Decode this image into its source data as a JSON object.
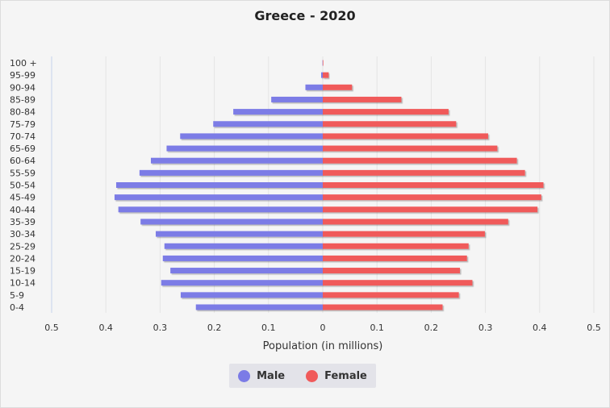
{
  "chart_data": {
    "type": "bar",
    "orientation": "horizontal-pyramid",
    "title": "Greece - 2020",
    "xlabel": "Population (in millions)",
    "xlim": [
      -0.5,
      0.5
    ],
    "x_ticks": [
      "0.5",
      "0.4",
      "0.3",
      "0.2",
      "0.1",
      "0",
      "0.1",
      "0.2",
      "0.3",
      "0.4",
      "0.5"
    ],
    "categories": [
      "100 +",
      "95-99",
      "90-94",
      "85-89",
      "80-84",
      "75-79",
      "70-74",
      "65-69",
      "60-64",
      "55-59",
      "50-54",
      "45-49",
      "40-44",
      "35-39",
      "30-34",
      "25-29",
      "20-24",
      "15-19",
      "10-14",
      "5-9",
      "0-4"
    ],
    "series": [
      {
        "name": "Male",
        "color": "#7b7be6",
        "values": [
          0.0005,
          0.003,
          0.032,
          0.095,
          0.165,
          0.202,
          0.263,
          0.288,
          0.317,
          0.338,
          0.381,
          0.384,
          0.377,
          0.336,
          0.308,
          0.292,
          0.295,
          0.281,
          0.298,
          0.262,
          0.234
        ]
      },
      {
        "name": "Female",
        "color": "#f05a5a",
        "values": [
          0.001,
          0.011,
          0.054,
          0.145,
          0.232,
          0.246,
          0.305,
          0.322,
          0.358,
          0.373,
          0.407,
          0.403,
          0.396,
          0.342,
          0.299,
          0.269,
          0.266,
          0.253,
          0.276,
          0.251,
          0.221
        ]
      }
    ],
    "grid": "vertical",
    "legend": "bottom-center"
  },
  "legend": {
    "male_label": "Male",
    "female_label": "Female"
  }
}
